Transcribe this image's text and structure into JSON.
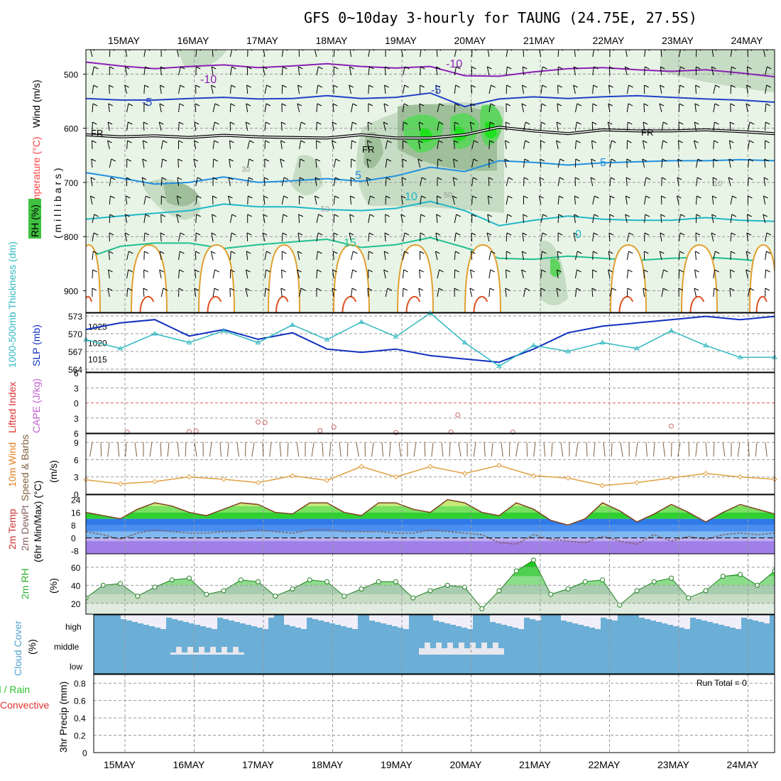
{
  "title": "GFS 0~10day 3-hourly for TAUNG (24.75E, 27.5S)",
  "dates": [
    "15MAY",
    "16MAY",
    "17MAY",
    "18MAY",
    "19MAY",
    "20MAY",
    "21MAY",
    "22MAY",
    "23MAY",
    "24MAY"
  ],
  "colors": {
    "temp_m10": "#8b1fb5",
    "temp_m5": "#2040c8",
    "temp_fr": "#000000",
    "temp_5": "#2090e0",
    "temp_10": "#20b8c8",
    "temp_15": "#20c090",
    "temp_20": "#e0a030",
    "temp_25": "#e05020",
    "slp": "#1030c0",
    "thick": "#30b8c0",
    "cape": "#cc6666",
    "lifted": "#e03030",
    "wind": "#e0a040",
    "barb": "#806040",
    "rh": "#40d040",
    "cloud": "#6baed6"
  },
  "chart_data": [
    {
      "panel": "upper-air",
      "type": "heatmap",
      "ylabel_wind": "Wind (m/s)",
      "ylabel_temp": "Temperature (°C)",
      "ylabel_rh": "RH (%)",
      "ylabel_mb": "( m i l l i b a r s )",
      "yticks": [
        500,
        600,
        700,
        800,
        900
      ],
      "ylim": [
        940,
        455
      ],
      "contour_labels": [
        "-10",
        "-10",
        "-5",
        "-5",
        "FR",
        "FR",
        "FR",
        "5",
        "5",
        "10",
        "15",
        "30",
        "50",
        "50",
        "10",
        "0"
      ],
      "isotherms": [
        {
          "label": "-10",
          "x": [
            0,
            0.5,
            1,
            1.5,
            2,
            2.5,
            3,
            3.5,
            4,
            4.5,
            5,
            5.5,
            6,
            6.5,
            7,
            7.5,
            8,
            8.5,
            9,
            9.5,
            10
          ],
          "y": [
            478,
            485,
            490,
            486,
            483,
            488,
            485,
            481,
            486,
            489,
            486,
            503,
            504,
            496,
            490,
            488,
            492,
            495,
            492,
            498,
            505
          ]
        },
        {
          "label": "-5",
          "x": [
            0,
            0.5,
            1,
            1.5,
            2,
            2.5,
            3,
            3.5,
            4,
            4.5,
            5,
            5.5,
            6,
            6.5,
            7,
            7.5,
            8,
            8.5,
            9,
            9.5,
            10
          ],
          "y": [
            545,
            548,
            548,
            545,
            543,
            546,
            545,
            540,
            545,
            543,
            535,
            560,
            546,
            542,
            545,
            542,
            540,
            543,
            546,
            548,
            552
          ]
        },
        {
          "label": "FR",
          "x": [
            0,
            0.5,
            1,
            1.5,
            2,
            2.5,
            3,
            3.5,
            4,
            4.5,
            5,
            5.5,
            6,
            6.5,
            7,
            7.5,
            8,
            8.5,
            9,
            9.5,
            10
          ],
          "y": [
            612,
            616,
            614,
            617,
            613,
            616,
            617,
            618,
            612,
            618,
            618,
            612,
            598,
            605,
            610,
            603,
            605,
            605,
            603,
            606,
            610
          ]
        },
        {
          "label": "5",
          "x": [
            0,
            0.5,
            1,
            1.5,
            2,
            2.5,
            3,
            3.5,
            4,
            4.5,
            5,
            5.5,
            6,
            6.5,
            7,
            7.5,
            8,
            8.5,
            9,
            9.5,
            10
          ],
          "y": [
            682,
            692,
            703,
            700,
            690,
            700,
            697,
            693,
            698,
            688,
            672,
            680,
            660,
            663,
            668,
            664,
            662,
            660,
            660,
            658,
            660
          ]
        },
        {
          "label": "10",
          "x": [
            0,
            0.5,
            1,
            1.5,
            2,
            2.5,
            3,
            3.5,
            4,
            4.5,
            5,
            5.5,
            6,
            6.5,
            7,
            7.5,
            8,
            8.5,
            9,
            9.5,
            10
          ],
          "y": [
            768,
            762,
            757,
            752,
            740,
            745,
            745,
            750,
            752,
            748,
            735,
            752,
            780,
            770,
            762,
            768,
            770,
            770,
            765,
            770,
            772
          ]
        },
        {
          "label": "15",
          "x": [
            0,
            0.5,
            1,
            1.5,
            2,
            2.5,
            3,
            3.5,
            4,
            4.5,
            5,
            5.5,
            6,
            6.5,
            7,
            7.5,
            8,
            8.5,
            9,
            9.5,
            10
          ],
          "y": [
            840,
            818,
            812,
            812,
            822,
            815,
            810,
            805,
            820,
            815,
            802,
            820,
            840,
            842,
            836,
            840,
            844,
            840,
            838,
            842,
            848
          ]
        }
      ]
    },
    {
      "panel": "slp-thickness",
      "type": "line",
      "ylabel_left": "1000-500mb Thickness (dm)",
      "ylabel_right": "SLP (mb)",
      "ticks_thick": [
        "573",
        "570",
        "567",
        "564"
      ],
      "ticks_slp": [
        "1025",
        "1020",
        "1015"
      ],
      "x": [
        0,
        0.5,
        1,
        1.5,
        2,
        2.5,
        3,
        3.5,
        4,
        4.5,
        5,
        5.5,
        6,
        6.5,
        7,
        7.5,
        8,
        8.5,
        9,
        9.5,
        10
      ],
      "series": [
        {
          "name": "SLP",
          "values": [
            1024,
            1026,
            1027,
            1022,
            1024,
            1021,
            1023,
            1018,
            1017,
            1018,
            1016,
            1015,
            1014,
            1018,
            1023,
            1025,
            1026,
            1027,
            1028,
            1027,
            1028
          ]
        },
        {
          "name": "Thickness",
          "values": [
            569.0,
            567.5,
            570.0,
            568.5,
            570.5,
            568.5,
            571.5,
            569.0,
            572.0,
            569.5,
            573.5,
            568.5,
            564.5,
            568.0,
            567.0,
            568.5,
            567.5,
            570.5,
            568.0,
            566.0,
            566.0
          ]
        }
      ],
      "ylim_slp": [
        1011,
        1029
      ],
      "ylim_thick": [
        563.5,
        573.5
      ]
    },
    {
      "panel": "cape-li",
      "type": "line",
      "ylabel_left": "Lifted Index",
      "ylabel_right": "CAPE (J/kg)",
      "ticks": [
        "-6",
        "-3",
        "0",
        "3",
        "6"
      ],
      "ylim": [
        -6,
        6
      ],
      "x": [
        0.6,
        1.5,
        1.6,
        2.5,
        2.6,
        3.4,
        3.6,
        4.5,
        5.3,
        5.4,
        6.2,
        8.5
      ],
      "series": [
        {
          "name": "Lifted Index",
          "values": [
            5.8,
            5.7,
            5.6,
            3.8,
            3.9,
            5.5,
            4.8,
            5.9,
            5.8,
            2.4,
            5.8,
            4.6
          ]
        }
      ]
    },
    {
      "panel": "10m-wind",
      "type": "line",
      "ylabel_left": "10m Wind",
      "ylabel_mid": "Speed & Barbs",
      "ylabel_right": "(m/s)",
      "yticks": [
        0,
        3,
        6,
        9
      ],
      "ylim": [
        0,
        10.5
      ],
      "x": [
        0,
        0.5,
        1,
        1.5,
        2,
        2.5,
        3,
        3.5,
        4,
        4.5,
        5,
        5.5,
        6,
        6.5,
        7,
        7.5,
        8,
        8.5,
        9,
        9.5,
        10
      ],
      "values": [
        2.5,
        1.8,
        2.2,
        3.0,
        2.6,
        2.0,
        3.2,
        2.4,
        4.8,
        3.0,
        4.8,
        3.6,
        5.0,
        3.2,
        2.8,
        1.5,
        2.0,
        2.8,
        3.6,
        3.0,
        2.6
      ]
    },
    {
      "panel": "2m-temp",
      "type": "area",
      "ylabel_left": "2m Temp",
      "ylabel_mid": "2m DewPt",
      "ylabel_right": "(6hr Min/Max) (°C)",
      "yticks": [
        "24",
        "16",
        "8",
        "0",
        "-8"
      ],
      "ylim": [
        -10,
        27
      ],
      "x": [
        0,
        0.25,
        0.5,
        0.75,
        1,
        1.25,
        1.5,
        1.75,
        2,
        2.25,
        2.5,
        2.75,
        3,
        3.25,
        3.5,
        3.75,
        4,
        4.25,
        4.5,
        4.75,
        5,
        5.25,
        5.5,
        5.75,
        6,
        6.25,
        6.5,
        6.75,
        7,
        7.25,
        7.5,
        7.75,
        8,
        8.25,
        8.5,
        8.75,
        9,
        9.25,
        9.5,
        9.75,
        10
      ],
      "series": [
        {
          "name": "Temp",
          "values": [
            16,
            14,
            12,
            18,
            22,
            20,
            16,
            14,
            18,
            22,
            21,
            16,
            15,
            22,
            22,
            16,
            14,
            22,
            22,
            18,
            16,
            24,
            22,
            16,
            14,
            22,
            18,
            11,
            8,
            12,
            22,
            17,
            10,
            15,
            21,
            16,
            10,
            16,
            21,
            18,
            15
          ]
        },
        {
          "name": "DewPt",
          "values": [
            4,
            2,
            -1,
            3,
            5,
            4,
            3,
            3,
            4,
            4,
            5,
            4,
            3,
            5,
            5,
            4,
            4,
            4,
            3,
            3,
            5,
            4,
            3,
            2,
            -3,
            -4,
            2,
            -1,
            -2,
            -3,
            1,
            -2,
            -4,
            2,
            -2,
            1,
            -1,
            2,
            3,
            2,
            3
          ]
        }
      ]
    },
    {
      "panel": "2m-rh",
      "type": "area",
      "ylabel_left": "2m RH",
      "ylabel_right": "(%)",
      "yticks": [
        20,
        40,
        60
      ],
      "ylim": [
        8,
        75
      ],
      "x": [
        0,
        0.25,
        0.5,
        0.75,
        1,
        1.25,
        1.5,
        1.75,
        2,
        2.25,
        2.5,
        2.75,
        3,
        3.25,
        3.5,
        3.75,
        4,
        4.25,
        4.5,
        4.75,
        5,
        5.25,
        5.5,
        5.75,
        6,
        6.25,
        6.5,
        6.75,
        7,
        7.25,
        7.5,
        7.75,
        8,
        8.25,
        8.5,
        8.75,
        9,
        9.25,
        9.5,
        9.75,
        10
      ],
      "values": [
        26,
        40,
        42,
        28,
        38,
        46,
        48,
        30,
        34,
        46,
        44,
        28,
        36,
        46,
        44,
        28,
        36,
        44,
        44,
        26,
        34,
        40,
        38,
        14,
        34,
        56,
        68,
        30,
        36,
        44,
        46,
        18,
        34,
        44,
        48,
        26,
        34,
        50,
        52,
        40,
        56
      ]
    },
    {
      "panel": "cloud-cover",
      "type": "heatmap",
      "ylabel_left": "Cloud Cover",
      "ylabel_right": "(%)",
      "levels": [
        "high",
        "middle",
        "low"
      ]
    },
    {
      "panel": "precip",
      "type": "bar",
      "ylabel_left": "Total / Rain",
      "ylabel_mid": "Convective",
      "ylabel_right": "3hr Precip (mm)",
      "yticks": [
        "0.8",
        "0.6",
        "0.4",
        "0.2",
        "0"
      ],
      "ylim": [
        0,
        0.9
      ],
      "run_total": "Run Total = 0",
      "values": []
    }
  ]
}
